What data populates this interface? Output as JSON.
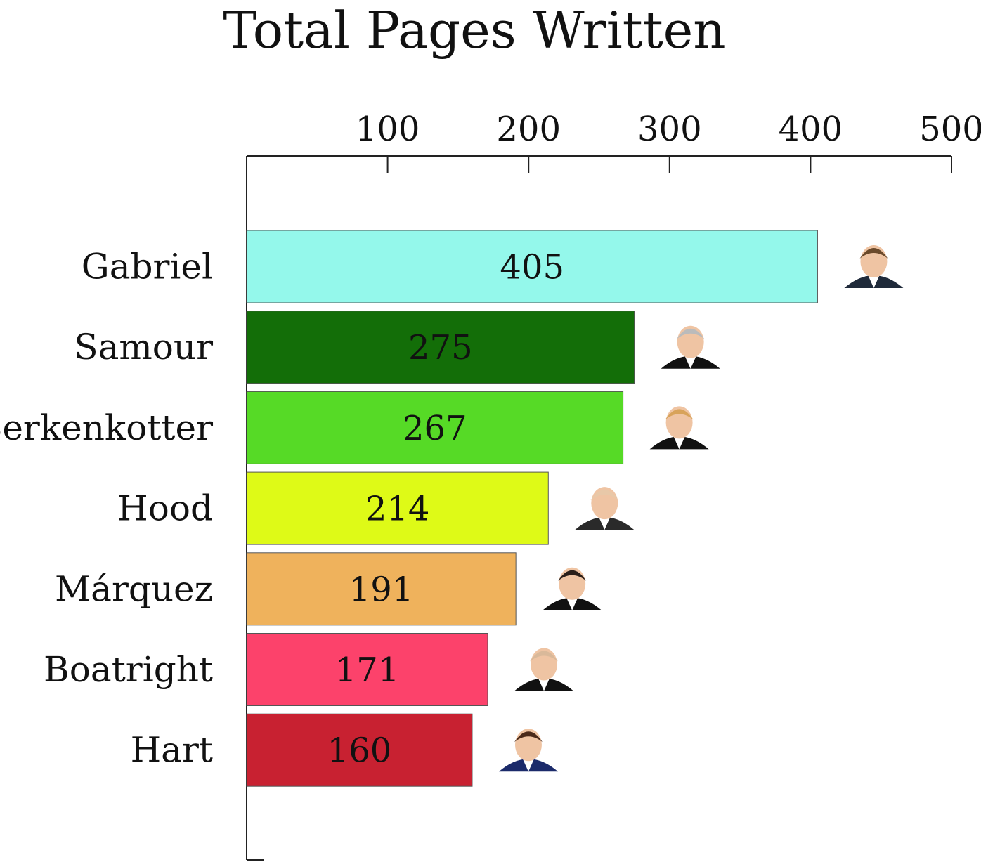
{
  "chart_data": {
    "type": "bar",
    "orientation": "horizontal",
    "title": "Total Pages Written",
    "xlabel": "",
    "ylabel": "",
    "xlim": [
      0,
      500
    ],
    "x_ticks": [
      100,
      200,
      300,
      400,
      500
    ],
    "x_axis_position": "top",
    "grid": false,
    "legend": "none",
    "data_labels": "inside-bar",
    "categories": [
      "Gabriel",
      "Samour",
      "Berkenkotter",
      "Hood",
      "Márquez",
      "Boatright",
      "Hart"
    ],
    "values": [
      405,
      275,
      267,
      214,
      191,
      171,
      160
    ],
    "colors": [
      "#94F8EB",
      "#136E08",
      "#56DA26",
      "#DEFA17",
      "#EFB25C",
      "#FC426B",
      "#C82131"
    ],
    "portraits": [
      "portrait-gabriel-icon",
      "portrait-samour-icon",
      "portrait-berkenkotter-icon",
      "portrait-hood-icon",
      "portrait-marquez-icon",
      "portrait-boatright-icon",
      "portrait-hart-icon"
    ]
  }
}
